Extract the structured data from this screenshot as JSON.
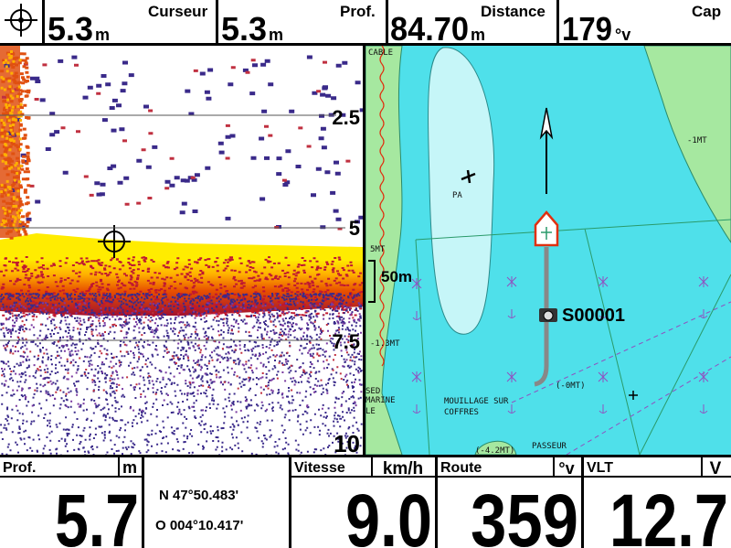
{
  "top_bar": {
    "cells": [
      {
        "value": "5.3",
        "unit": "m",
        "label": "Curseur"
      },
      {
        "value": "5.3",
        "unit": "m",
        "label": "Prof."
      },
      {
        "value": "84.70",
        "unit": "m",
        "label": "Distance"
      },
      {
        "value": "179",
        "unit": "°v",
        "label": "Cap"
      }
    ]
  },
  "sonar": {
    "depth_scale": [
      "2.5",
      "5",
      "7.5",
      "10"
    ]
  },
  "map": {
    "labels": [
      "CABLE",
      "-1MT",
      "PA",
      "5MT",
      "-1.3MT",
      "(-0MT)",
      "SED",
      "MARINE",
      "LE",
      "MOUILLAGE SUR",
      "COFFRES",
      "(-4.2MT)",
      "PASSEUR"
    ],
    "scale": "50m",
    "waypoint": "S00001"
  },
  "bottom_bar": {
    "depth": {
      "label": "Prof.",
      "unit": "m",
      "value": "5.7"
    },
    "position": {
      "lat": "N 47°50.483'",
      "lon": "O 004°10.417'"
    },
    "speed": {
      "label": "Vitesse",
      "unit": "km/h",
      "value": "9.0"
    },
    "course": {
      "label": "Route",
      "unit": "°v",
      "value": "359"
    },
    "voltage": {
      "label": "VLT",
      "unit": "V",
      "value": "12.7"
    }
  }
}
